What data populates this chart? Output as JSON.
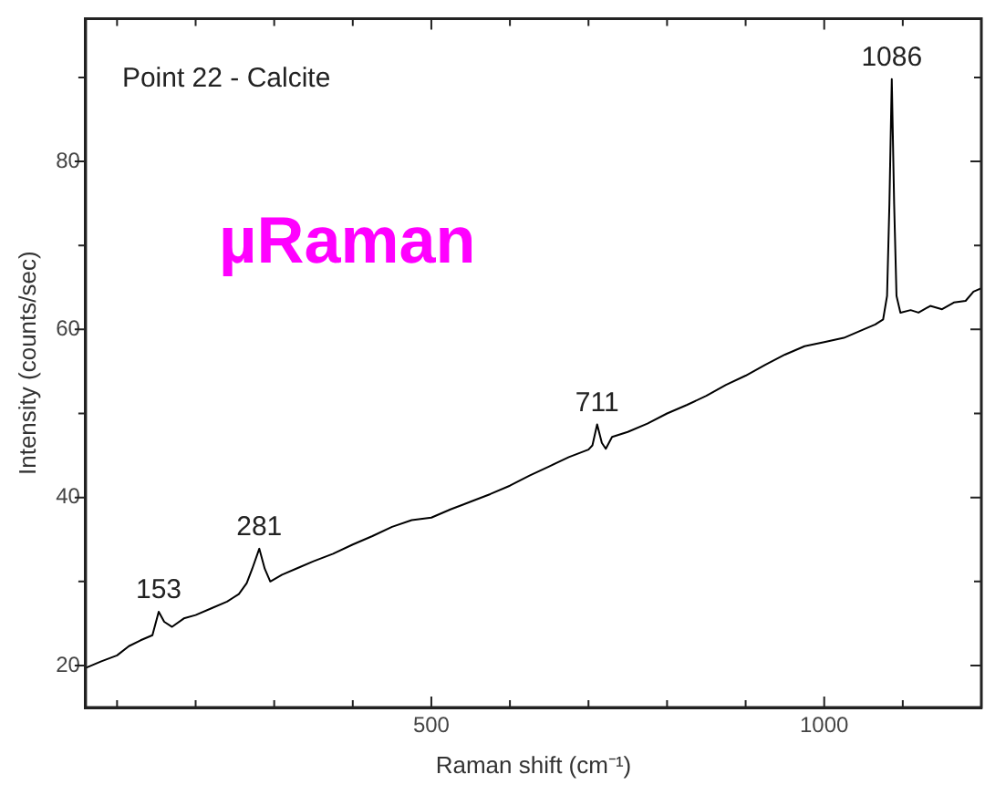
{
  "chart_data": {
    "type": "line",
    "xlabel": "Raman shift (cm⁻¹)",
    "ylabel": "Intensity (counts/sec)",
    "annotations": [
      "Point 22 - Calcite",
      "µRaman",
      {
        "text": "153",
        "x": 153,
        "y": 26.4
      },
      {
        "text": "281",
        "x": 281,
        "y": 33.9
      },
      {
        "text": "711",
        "x": 711,
        "y": 48.7
      },
      {
        "text": "1086",
        "x": 1086,
        "y": 89.8
      }
    ],
    "x": [
      60,
      80,
      100,
      115,
      130,
      145,
      153,
      160,
      170,
      185,
      200,
      220,
      240,
      255,
      265,
      272,
      281,
      288,
      295,
      310,
      330,
      350,
      375,
      400,
      425,
      450,
      475,
      500,
      525,
      550,
      575,
      600,
      625,
      650,
      675,
      700,
      705,
      711,
      717,
      722,
      730,
      750,
      775,
      800,
      825,
      850,
      875,
      900,
      925,
      950,
      975,
      1000,
      1025,
      1050,
      1065,
      1075,
      1080,
      1083,
      1086,
      1089,
      1092,
      1097,
      1110,
      1120,
      1135,
      1150,
      1165,
      1180,
      1190,
      1200
    ],
    "series": [
      {
        "color": "#000000",
        "values": [
          19.7,
          20.5,
          21.2,
          22.3,
          23,
          23.6,
          26.4,
          25.2,
          24.6,
          25.6,
          26,
          26.8,
          27.6,
          28.5,
          29.8,
          31.5,
          33.9,
          31.5,
          30,
          30.8,
          31.6,
          32.4,
          33.3,
          34.4,
          35.4,
          36.5,
          37.3,
          37.6,
          38.6,
          39.5,
          40.4,
          41.4,
          42.6,
          43.7,
          44.8,
          45.7,
          46.2,
          48.7,
          46.5,
          45.8,
          47.2,
          47.8,
          48.8,
          50,
          51,
          52.1,
          53.4,
          54.5,
          55.8,
          57,
          58,
          58.5,
          59,
          60,
          60.6,
          61.2,
          64,
          75,
          89.8,
          75,
          64,
          62,
          62.3,
          62,
          62.8,
          62.4,
          63.2,
          63.4,
          64.5,
          64.9
        ]
      }
    ],
    "xlim": [
      60,
      1200
    ],
    "xticks": [
      {
        "value": 100,
        "label": null
      },
      {
        "value": 200,
        "label": null
      },
      {
        "value": 300,
        "label": null
      },
      {
        "value": 400,
        "label": null
      },
      500,
      {
        "value": 600,
        "label": null
      },
      {
        "value": 700,
        "label": null
      },
      {
        "value": 800,
        "label": null
      },
      {
        "value": 900,
        "label": null
      },
      1000,
      {
        "value": 1100,
        "label": null
      }
    ],
    "ylim": [
      15,
      97
    ],
    "yticks": [
      20,
      {
        "value": 30,
        "label": null
      },
      40,
      {
        "value": 50,
        "label": null
      },
      60,
      {
        "value": 70,
        "label": null
      },
      80,
      {
        "value": 90,
        "label": null
      }
    ],
    "grid": false,
    "legend": false,
    "marker": "none",
    "line_style": "solid"
  }
}
